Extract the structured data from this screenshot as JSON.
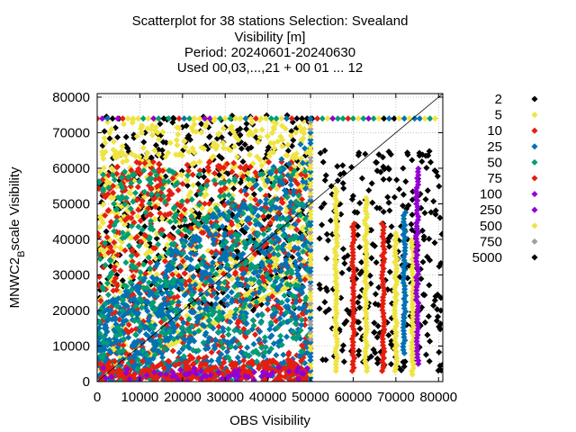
{
  "chart_data": {
    "type": "scatter",
    "title_lines": [
      "Scatterplot for   38 stations Selection: Svealand",
      "Visibility [m]",
      "Period: 20240601-20240630",
      "Used 00,03,...,21 + 00 01 ... 12"
    ],
    "xlabel": "OBS Visibility",
    "ylabel_main": "MNWC2",
    "ylabel_sub": "B",
    "ylabel_rest": "scale Visibility",
    "xlim": [
      0,
      81000
    ],
    "ylim": [
      0,
      81000
    ],
    "x_ticks": [
      "0",
      "10000",
      "20000",
      "30000",
      "40000",
      "50000",
      "60000",
      "70000",
      "80000"
    ],
    "y_ticks": [
      "0",
      "10000",
      "20000",
      "30000",
      "40000",
      "50000",
      "60000",
      "70000",
      "80000"
    ],
    "x_tick_values": [
      0,
      10000,
      20000,
      30000,
      40000,
      50000,
      60000,
      70000,
      80000
    ],
    "y_tick_values": [
      0,
      10000,
      20000,
      30000,
      40000,
      50000,
      60000,
      70000,
      80000
    ],
    "grid": true,
    "diagonal": true,
    "legend_position": "right",
    "series": [
      {
        "name": "2",
        "color": "#000000"
      },
      {
        "name": "5",
        "color": "#f0e442"
      },
      {
        "name": "10",
        "color": "#e51e10"
      },
      {
        "name": "25",
        "color": "#0072b2"
      },
      {
        "name": "50",
        "color": "#009e73"
      },
      {
        "name": "75",
        "color": "#e51e10"
      },
      {
        "name": "100",
        "color": "#9400d3"
      },
      {
        "name": "250",
        "color": "#9400d3"
      },
      {
        "name": "500",
        "color": "#f0e442"
      },
      {
        "name": "750",
        "color": "#a0a0a0"
      },
      {
        "name": "5000",
        "color": "#000000"
      }
    ]
  }
}
